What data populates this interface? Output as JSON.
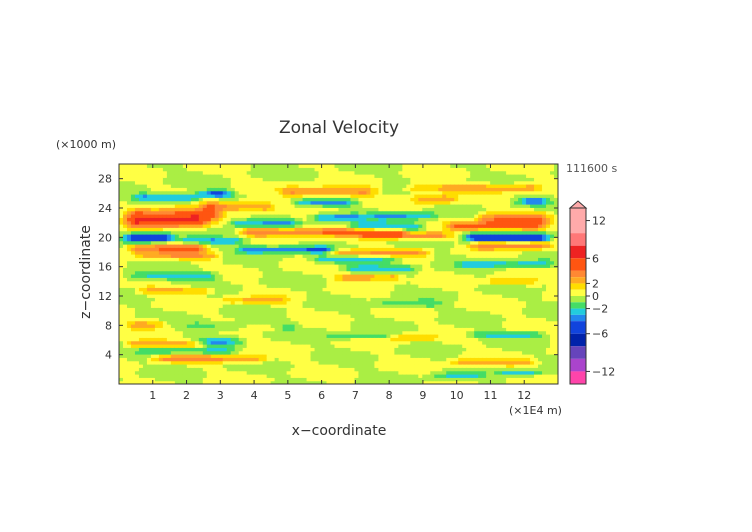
{
  "chart_data": {
    "type": "heatmap",
    "title": "Zonal Velocity",
    "xlabel": "x−coordinate",
    "ylabel": "z−coordinate",
    "x_unit": "(×1E4 m)",
    "y_unit": "(×1000 m)",
    "time_label": "111600 s",
    "xlim": [
      0,
      13
    ],
    "ylim": [
      0,
      30
    ],
    "x_ticks": [
      1,
      2,
      3,
      4,
      5,
      6,
      7,
      8,
      9,
      10,
      11,
      12
    ],
    "y_ticks": [
      4,
      8,
      12,
      16,
      20,
      24,
      28
    ],
    "colorbar": {
      "ticks": [
        12,
        6,
        2,
        0,
        -2,
        -6,
        -12
      ],
      "tick_labels": [
        "12",
        "6",
        "2",
        "0",
        "−2",
        "−6",
        "−12"
      ],
      "levels": [
        {
          "from": 10,
          "to": 14,
          "color": "#ffaaaa"
        },
        {
          "from": 8,
          "to": 10,
          "color": "#ff7777"
        },
        {
          "from": 6,
          "to": 8,
          "color": "#ee2222"
        },
        {
          "from": 4,
          "to": 6,
          "color": "#ff5511"
        },
        {
          "from": 3,
          "to": 4,
          "color": "#ff8833"
        },
        {
          "from": 2,
          "to": 3,
          "color": "#ffaa22"
        },
        {
          "from": 1,
          "to": 2,
          "color": "#ffdd00"
        },
        {
          "from": 0,
          "to": 1,
          "color": "#ffff44"
        },
        {
          "from": -1,
          "to": 0,
          "color": "#aaee44"
        },
        {
          "from": -2,
          "to": -1,
          "color": "#44dd66"
        },
        {
          "from": -3,
          "to": -2,
          "color": "#22ccdd"
        },
        {
          "from": -4,
          "to": -3,
          "color": "#2288ee"
        },
        {
          "from": -6,
          "to": -4,
          "color": "#1144dd"
        },
        {
          "from": -8,
          "to": -6,
          "color": "#0022aa"
        },
        {
          "from": -10,
          "to": -8,
          "color": "#6644bb"
        },
        {
          "from": -12,
          "to": -10,
          "color": "#aa44cc"
        },
        {
          "from": -14,
          "to": -12,
          "color": "#ff44aa"
        }
      ]
    },
    "bands": [
      {
        "z": 26.8,
        "x0": 8.3,
        "x1": 12.7,
        "amp": 2.6,
        "w": 0.6
      },
      {
        "z": 26.3,
        "x0": 4.6,
        "x1": 7.8,
        "amp": 3.2,
        "w": 0.7
      },
      {
        "z": 26.0,
        "x0": 2.2,
        "x1": 3.6,
        "amp": -4.5,
        "w": 0.5
      },
      {
        "z": 25.5,
        "x0": 0.2,
        "x1": 2.6,
        "amp": -3.5,
        "w": 0.6
      },
      {
        "z": 25.3,
        "x0": 8.5,
        "x1": 10.2,
        "amp": 3.0,
        "w": 0.6
      },
      {
        "z": 25.0,
        "x0": 11.6,
        "x1": 12.9,
        "amp": -3.5,
        "w": 0.5
      },
      {
        "z": 24.8,
        "x0": 5.0,
        "x1": 7.2,
        "amp": -3.0,
        "w": 0.5
      },
      {
        "z": 24.3,
        "x0": 2.2,
        "x1": 4.8,
        "amp": 3.5,
        "w": 0.7
      },
      {
        "z": 23.2,
        "x0": 0.0,
        "x1": 3.2,
        "amp": 4.0,
        "w": 1.0
      },
      {
        "z": 23.0,
        "x0": 7.2,
        "x1": 9.6,
        "amp": -3.0,
        "w": 0.5
      },
      {
        "z": 22.8,
        "x0": 5.5,
        "x1": 7.5,
        "amp": -3.5,
        "w": 0.5
      },
      {
        "z": 22.6,
        "x0": 10.4,
        "x1": 13.0,
        "amp": 3.5,
        "w": 0.8
      },
      {
        "z": 22.2,
        "x0": 0.0,
        "x1": 2.8,
        "amp": 4.5,
        "w": 0.9
      },
      {
        "z": 22.0,
        "x0": 3.0,
        "x1": 5.5,
        "amp": -2.8,
        "w": 0.6
      },
      {
        "z": 21.6,
        "x0": 9.5,
        "x1": 12.8,
        "amp": 4.0,
        "w": 0.6
      },
      {
        "z": 21.5,
        "x0": 6.6,
        "x1": 9.2,
        "amp": -3.2,
        "w": 0.6
      },
      {
        "z": 20.8,
        "x0": 3.4,
        "x1": 8.7,
        "amp": 4.0,
        "w": 0.6
      },
      {
        "z": 20.3,
        "x0": 7.0,
        "x1": 10.0,
        "amp": 3.5,
        "w": 0.5
      },
      {
        "z": 20.0,
        "x0": 0.0,
        "x1": 1.8,
        "amp": -6.0,
        "w": 0.7
      },
      {
        "z": 20.0,
        "x0": 10.0,
        "x1": 13.0,
        "amp": -5.5,
        "w": 0.6
      },
      {
        "z": 19.6,
        "x0": 1.5,
        "x1": 4.0,
        "amp": -2.8,
        "w": 0.5
      },
      {
        "z": 19.0,
        "x0": 10.2,
        "x1": 13.0,
        "amp": 3.5,
        "w": 0.6
      },
      {
        "z": 18.6,
        "x0": 0.0,
        "x1": 2.8,
        "amp": 3.8,
        "w": 0.7
      },
      {
        "z": 18.4,
        "x0": 3.3,
        "x1": 6.6,
        "amp": -3.8,
        "w": 0.5
      },
      {
        "z": 18.0,
        "x0": 6.0,
        "x1": 9.4,
        "amp": 3.0,
        "w": 0.5
      },
      {
        "z": 17.5,
        "x0": 0.3,
        "x1": 3.2,
        "amp": 2.5,
        "w": 0.5
      },
      {
        "z": 17.0,
        "x0": 5.5,
        "x1": 8.5,
        "amp": -2.6,
        "w": 0.5
      },
      {
        "z": 16.4,
        "x0": 9.8,
        "x1": 13.0,
        "amp": -2.4,
        "w": 0.5
      },
      {
        "z": 15.8,
        "x0": 6.5,
        "x1": 9.0,
        "amp": -2.5,
        "w": 0.5
      },
      {
        "z": 14.8,
        "x0": 0.0,
        "x1": 3.2,
        "amp": -2.5,
        "w": 0.6
      },
      {
        "z": 14.6,
        "x0": 6.2,
        "x1": 8.6,
        "amp": 3.0,
        "w": 0.5
      },
      {
        "z": 14.0,
        "x0": 10.6,
        "x1": 12.6,
        "amp": 2.0,
        "w": 0.5
      },
      {
        "z": 12.8,
        "x0": 0.4,
        "x1": 3.0,
        "amp": 2.5,
        "w": 0.5
      },
      {
        "z": 11.5,
        "x0": 2.8,
        "x1": 5.2,
        "amp": 2.0,
        "w": 0.5
      },
      {
        "z": 11.0,
        "x0": 7.4,
        "x1": 9.8,
        "amp": -1.6,
        "w": 0.5
      },
      {
        "z": 8.2,
        "x0": 0.0,
        "x1": 1.6,
        "amp": 2.6,
        "w": 0.6
      },
      {
        "z": 8.0,
        "x0": 1.8,
        "x1": 5.5,
        "amp": -1.5,
        "w": 0.6
      },
      {
        "z": 7.8,
        "x0": 3.5,
        "x1": 5.0,
        "amp": 2.0,
        "w": 0.4
      },
      {
        "z": 6.8,
        "x0": 10.2,
        "x1": 12.8,
        "amp": -2.5,
        "w": 0.4
      },
      {
        "z": 6.6,
        "x0": 6.0,
        "x1": 8.4,
        "amp": -2.2,
        "w": 0.4
      },
      {
        "z": 6.4,
        "x0": 7.6,
        "x1": 9.6,
        "amp": 2.0,
        "w": 0.5
      },
      {
        "z": 5.8,
        "x0": 2.0,
        "x1": 3.8,
        "amp": -2.5,
        "w": 0.5
      },
      {
        "z": 5.5,
        "x0": 0.0,
        "x1": 2.8,
        "amp": 3.0,
        "w": 0.5
      },
      {
        "z": 4.6,
        "x0": 0.4,
        "x1": 3.6,
        "amp": -2.2,
        "w": 0.5
      },
      {
        "z": 3.5,
        "x0": 0.8,
        "x1": 4.6,
        "amp": 3.0,
        "w": 0.5
      },
      {
        "z": 3.0,
        "x0": 9.6,
        "x1": 12.6,
        "amp": 2.2,
        "w": 0.5
      },
      {
        "z": 1.6,
        "x0": 11.0,
        "x1": 12.8,
        "amp": -2.4,
        "w": 0.4
      },
      {
        "z": 1.2,
        "x0": 9.0,
        "x1": 11.0,
        "amp": -2.0,
        "w": 0.4
      }
    ]
  }
}
